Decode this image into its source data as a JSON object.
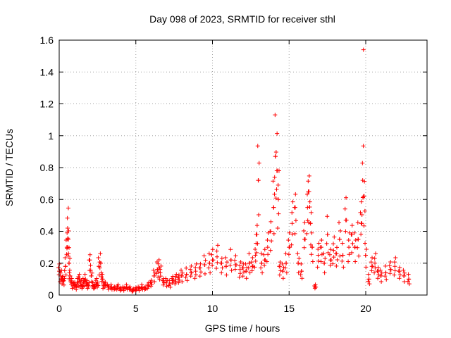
{
  "chart_data": {
    "type": "scatter",
    "title": "Day 098 of 2023, SRMTID for receiver sthl",
    "xlabel": "GPS time / hours",
    "ylabel": "SRMTID / TECUs",
    "xlim": [
      0,
      24
    ],
    "ylim": [
      0,
      1.6
    ],
    "xticks": [
      0,
      5,
      10,
      15,
      20
    ],
    "xtick_labels": [
      "0",
      "5",
      "10",
      "15",
      "20"
    ],
    "yticks": [
      0,
      0.2,
      0.4,
      0.6,
      0.8,
      1.0,
      1.2,
      1.4,
      1.6
    ],
    "ytick_labels": [
      "0",
      "0.2",
      "0.4",
      "0.6",
      "0.8",
      "1",
      "1.2",
      "1.4",
      "1.6"
    ],
    "grid": true,
    "marker": "+",
    "marker_color": "#ff0000",
    "series": [
      {
        "name": "SRMTID",
        "x": [
          0.0,
          0.1,
          0.2,
          0.3,
          0.4,
          0.5,
          0.55,
          0.6,
          0.65,
          0.7,
          0.8,
          0.9,
          1.0,
          1.1,
          1.2,
          1.3,
          1.4,
          1.5,
          1.6,
          1.7,
          1.8,
          1.9,
          2.0,
          2.1,
          2.2,
          2.3,
          2.4,
          2.5,
          2.6,
          2.7,
          2.8,
          2.9,
          3.0,
          3.2,
          3.4,
          3.6,
          3.8,
          4.0,
          4.2,
          4.4,
          4.6,
          4.8,
          5.0,
          5.2,
          5.4,
          5.6,
          5.8,
          6.0,
          6.2,
          6.4,
          6.5,
          6.6,
          6.8,
          7.0,
          7.2,
          7.4,
          7.6,
          7.8,
          8.0,
          8.3,
          8.6,
          8.9,
          9.2,
          9.5,
          9.8,
          10.0,
          10.3,
          10.6,
          10.9,
          11.2,
          11.5,
          11.8,
          12.0,
          12.2,
          12.4,
          12.6,
          12.8,
          12.9,
          13.0,
          13.2,
          13.4,
          13.6,
          13.8,
          14.0,
          14.1,
          14.2,
          14.3,
          14.4,
          14.6,
          14.8,
          15.0,
          15.2,
          15.4,
          15.6,
          15.8,
          16.0,
          16.2,
          16.3,
          16.4,
          16.5,
          16.7,
          16.9,
          17.1,
          17.3,
          17.5,
          17.7,
          17.9,
          18.1,
          18.3,
          18.5,
          18.7,
          18.9,
          19.1,
          19.3,
          19.5,
          19.7,
          19.8,
          19.9,
          20.0,
          20.2,
          20.4,
          20.6,
          20.8,
          21.0,
          21.3,
          21.6,
          21.9,
          22.2,
          22.5,
          22.8
        ],
        "y": [
          0.15,
          0.12,
          0.1,
          0.09,
          0.18,
          0.3,
          0.42,
          0.35,
          0.2,
          0.12,
          0.08,
          0.06,
          0.07,
          0.05,
          0.08,
          0.1,
          0.07,
          0.06,
          0.08,
          0.1,
          0.07,
          0.06,
          0.22,
          0.12,
          0.06,
          0.05,
          0.08,
          0.07,
          0.18,
          0.2,
          0.1,
          0.06,
          0.07,
          0.05,
          0.05,
          0.04,
          0.05,
          0.04,
          0.04,
          0.05,
          0.04,
          0.03,
          0.04,
          0.04,
          0.05,
          0.04,
          0.06,
          0.08,
          0.12,
          0.16,
          0.17,
          0.14,
          0.09,
          0.08,
          0.07,
          0.09,
          0.1,
          0.11,
          0.12,
          0.13,
          0.14,
          0.15,
          0.17,
          0.19,
          0.2,
          0.22,
          0.24,
          0.2,
          0.18,
          0.22,
          0.19,
          0.16,
          0.17,
          0.15,
          0.2,
          0.18,
          0.25,
          0.38,
          0.72,
          0.2,
          0.22,
          0.3,
          0.4,
          0.55,
          0.87,
          0.78,
          0.6,
          0.18,
          0.15,
          0.2,
          0.3,
          0.45,
          0.55,
          0.2,
          0.15,
          0.35,
          0.55,
          0.65,
          0.45,
          0.3,
          0.05,
          0.25,
          0.3,
          0.2,
          0.38,
          0.22,
          0.28,
          0.26,
          0.35,
          0.25,
          0.47,
          0.3,
          0.38,
          0.3,
          0.35,
          0.45,
          0.72,
          0.62,
          0.25,
          0.1,
          0.18,
          0.2,
          0.15,
          0.12,
          0.14,
          0.16,
          0.18,
          0.15,
          0.12,
          0.1
        ],
        "outliers": [
          {
            "x": 19.85,
            "y": 1.54
          }
        ]
      }
    ]
  }
}
